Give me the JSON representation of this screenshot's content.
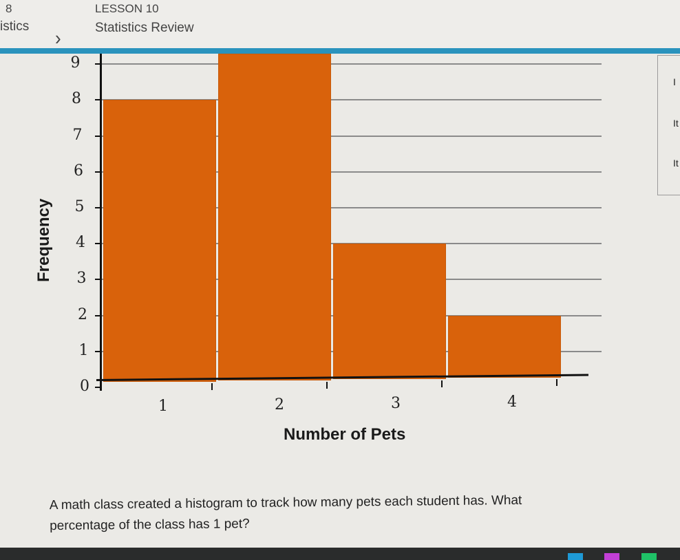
{
  "header": {
    "unit_label": "8",
    "unit_title": "istics",
    "chevron_icon": "chevron-right-icon",
    "lesson_label": "LESSON 10",
    "lesson_title": "Statistics Review"
  },
  "side_panel": {
    "items": [
      "I",
      "It",
      "It"
    ]
  },
  "chart_data": {
    "type": "bar",
    "title": "",
    "xlabel": "Number of Pets",
    "ylabel": "Frequency",
    "categories": [
      "1",
      "2",
      "3",
      "4"
    ],
    "values": [
      8,
      10,
      4,
      2
    ],
    "ylim": [
      0,
      9
    ],
    "yticks": [
      "0",
      "1",
      "2",
      "3",
      "4",
      "5",
      "6",
      "7",
      "8",
      "9"
    ],
    "grid": true,
    "bar_color": "#d9620b",
    "note": "Bar for 2 pets extends above the visible top of the y-axis (beyond 9)"
  },
  "question": {
    "text": "A math class created a histogram to track how many pets each student has. What percentage of the class has 1 pet?"
  },
  "colors": {
    "accent_band": "#2a93bd",
    "bar": "#d9620b",
    "background": "#ebeae6"
  },
  "taskbar": {
    "icons": [
      "app-icon-blue",
      "app-icon-magenta",
      "app-icon-green"
    ]
  }
}
